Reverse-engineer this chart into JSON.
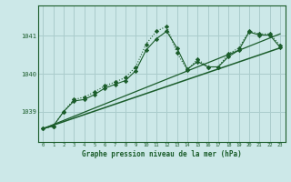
{
  "bg_color": "#cce8e8",
  "grid_color": "#aacccc",
  "line_color": "#1a5c2a",
  "xlabel": "Graphe pression niveau de la mer (hPa)",
  "xlim": [
    -0.5,
    23.5
  ],
  "ylim": [
    1038.2,
    1041.8
  ],
  "yticks": [
    1039,
    1040,
    1041
  ],
  "xticks": [
    0,
    1,
    2,
    3,
    4,
    5,
    6,
    7,
    8,
    9,
    10,
    11,
    12,
    13,
    14,
    15,
    16,
    17,
    18,
    19,
    20,
    21,
    22,
    23
  ],
  "series": [
    {
      "x": [
        0,
        1,
        2,
        3,
        4,
        5,
        6,
        7,
        8,
        9,
        10,
        11,
        12,
        13,
        14,
        15,
        16,
        17,
        18,
        19,
        20,
        21,
        22,
        23
      ],
      "y": [
        1038.55,
        1038.62,
        1039.0,
        1039.32,
        1039.38,
        1039.52,
        1039.68,
        1039.78,
        1039.9,
        1040.18,
        1040.78,
        1041.12,
        1041.25,
        1040.55,
        1040.1,
        1040.38,
        1040.18,
        1040.18,
        1040.52,
        1040.68,
        1041.12,
        1041.05,
        1041.05,
        1040.75
      ],
      "marker": "D",
      "markersize": 2.2,
      "linewidth": 0.8,
      "linestyle": ":"
    },
    {
      "x": [
        0,
        1,
        2,
        3,
        4,
        5,
        6,
        7,
        8,
        9,
        10,
        11,
        12,
        13,
        14,
        15,
        16,
        17,
        18,
        19,
        20,
        21,
        22,
        23
      ],
      "y": [
        1038.55,
        1038.62,
        1039.0,
        1039.28,
        1039.32,
        1039.45,
        1039.62,
        1039.72,
        1039.82,
        1040.08,
        1040.62,
        1040.92,
        1041.12,
        1040.68,
        1040.12,
        1040.32,
        1040.18,
        1040.18,
        1040.45,
        1040.62,
        1041.1,
        1041.02,
        1041.02,
        1040.7
      ],
      "marker": "D",
      "markersize": 2.2,
      "linewidth": 0.8,
      "linestyle": "-"
    },
    {
      "x": [
        0,
        23
      ],
      "y": [
        1038.55,
        1040.68
      ],
      "marker": null,
      "linewidth": 1.1,
      "linestyle": "-"
    },
    {
      "x": [
        0,
        23
      ],
      "y": [
        1038.55,
        1041.05
      ],
      "marker": null,
      "linewidth": 0.9,
      "linestyle": "-"
    }
  ]
}
